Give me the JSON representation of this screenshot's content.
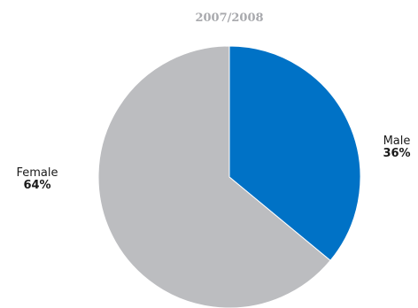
{
  "chart_data": {
    "type": "pie",
    "title": "2007/2008",
    "slices": [
      {
        "label": "Male",
        "value": 36,
        "display": "36%",
        "color": "#0072c6"
      },
      {
        "label": "Female",
        "value": 64,
        "display": "64%",
        "color": "#bcbdc0"
      }
    ],
    "start_angle": "12 o'clock",
    "direction": "clockwise",
    "label_placement": "outside",
    "legend": "none"
  }
}
